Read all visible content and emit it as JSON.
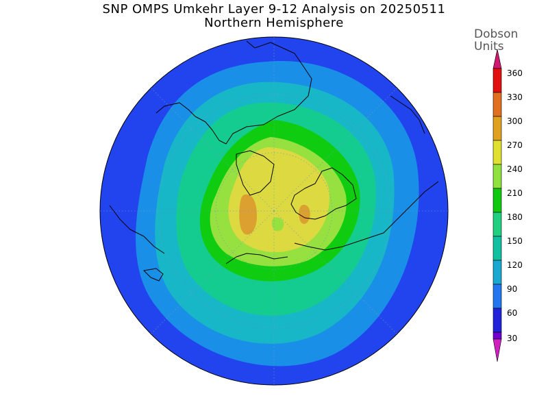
{
  "title": {
    "line1": "SNP OMPS Umkehr Layer 9-12 Analysis on 20250511",
    "line2": "Northern Hemisphere"
  },
  "colorbar": {
    "unit_line1": "Dobson",
    "unit_line2": "Units",
    "levels": [
      "30",
      "60",
      "90",
      "120",
      "150",
      "180",
      "210",
      "240",
      "270",
      "300",
      "330",
      "360"
    ],
    "colors": [
      "#d020c0",
      "#7000d0",
      "#2222d8",
      "#2277ee",
      "#1aa8d0",
      "#10c0a0",
      "#20d080",
      "#10c810",
      "#90e040",
      "#e0e030",
      "#e0a020",
      "#e07020",
      "#e01010",
      "#d01870"
    ]
  },
  "map": {
    "projection": "north-polar-stereographic",
    "levels_dobson": [
      90,
      120,
      150,
      180,
      210,
      240,
      270
    ],
    "center_max_dobson": 270,
    "boundary_min_dobson": 60,
    "colors": {
      "60": "#2244ee",
      "90": "#1a8fe8",
      "120": "#18b7c8",
      "150": "#14cc90",
      "180": "#10cc10",
      "210": "#96e040",
      "240": "#ddd940",
      "270": "#dca030"
    }
  }
}
